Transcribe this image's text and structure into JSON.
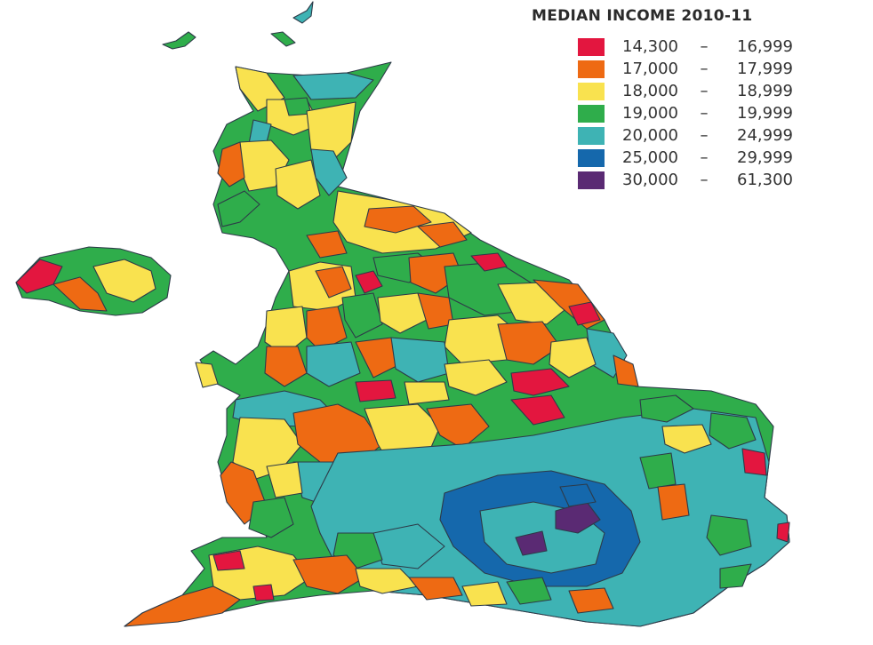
{
  "legend": {
    "title": "MEDIAN INCOME 2010-11",
    "items": [
      {
        "low": "14,300",
        "high": "16,999",
        "color": "#e3163f"
      },
      {
        "low": "17,000",
        "high": "17,999",
        "color": "#ee6a13"
      },
      {
        "low": "18,000",
        "high": "18,999",
        "color": "#f9e24f"
      },
      {
        "low": "19,000",
        "high": "19,999",
        "color": "#2fad4b"
      },
      {
        "low": "20,000",
        "high": "24,999",
        "color": "#3eb3b4"
      },
      {
        "low": "25,000",
        "high": "29,999",
        "color": "#1568ac"
      },
      {
        "low": "30,000",
        "high": "61,300",
        "color": "#5a2a73"
      }
    ],
    "separator": "–"
  }
}
